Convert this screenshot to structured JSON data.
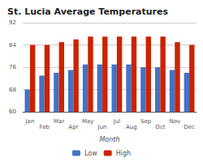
{
  "chart_data": {
    "type": "bar",
    "title": "St. Lucia Average Temperatures",
    "xlabel": "Month",
    "categories": [
      "Jan",
      "Feb",
      "Mar",
      "Apr",
      "May",
      "Jun",
      "Jul",
      "Aug",
      "Sep",
      "Oct",
      "Nov",
      "Dec"
    ],
    "series": [
      {
        "name": "Low",
        "color": "#4472c4",
        "values": [
          68,
          73,
          74,
          75,
          77,
          77,
          77,
          77,
          76,
          76,
          75,
          74
        ]
      },
      {
        "name": "High",
        "color": "#cc2200",
        "values": [
          84,
          84,
          85,
          86,
          87,
          87,
          87,
          87,
          87,
          87,
          85,
          84
        ]
      }
    ],
    "ylim": [
      60,
      92
    ],
    "yticks": [
      60,
      68,
      76,
      84,
      92
    ],
    "grid": true,
    "legend": "bottom"
  }
}
